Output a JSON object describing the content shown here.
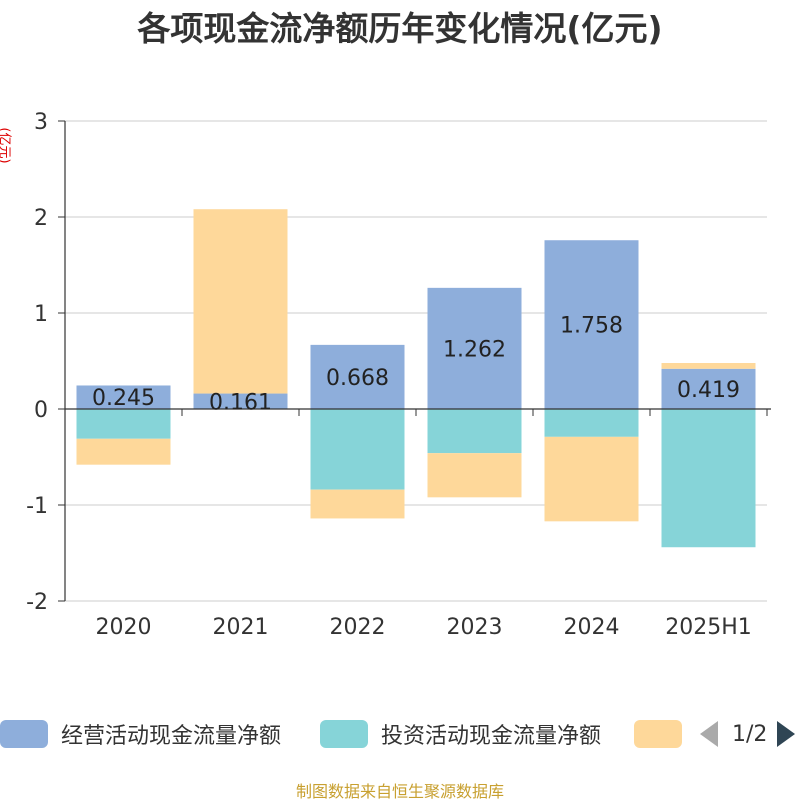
{
  "title": "各项现金流净额历年变化情况(亿元)",
  "footer": "制图数据来自恒生聚源数据库",
  "colors": {
    "operating": "#8eaedb",
    "investing": "#86d4d8",
    "financing": "#fed89a",
    "axis": "#333333",
    "grid": "#cccccc",
    "label_unit": "#dd0000"
  },
  "legend": {
    "pager_text": "1/2",
    "prev_icon": "triangle-left-icon",
    "next_icon": "triangle-right-icon"
  },
  "chart_data": {
    "type": "bar",
    "stacked": true,
    "ylabel": "(亿元)",
    "ylim": [
      -2,
      3
    ],
    "yticks": [
      3,
      2,
      1,
      0,
      -1,
      -2
    ],
    "grid": true,
    "legend_position": "bottom",
    "categories": [
      "2020",
      "2021",
      "2022",
      "2023",
      "2024",
      "2025H1"
    ],
    "series": [
      {
        "name": "经营活动现金流量净额",
        "values": [
          0.245,
          0.161,
          0.668,
          1.262,
          1.758,
          0.419
        ],
        "labels": [
          "0.245",
          "0.161",
          "0.668",
          "1.262",
          "1.758",
          "0.419"
        ]
      },
      {
        "name": "投资活动现金流量净额",
        "values": [
          -0.31,
          0.0,
          -0.84,
          -0.46,
          -0.29,
          -1.44
        ]
      },
      {
        "name": "",
        "values": [
          -0.27,
          1.92,
          -0.3,
          -0.46,
          -0.88,
          0.06
        ]
      }
    ]
  }
}
